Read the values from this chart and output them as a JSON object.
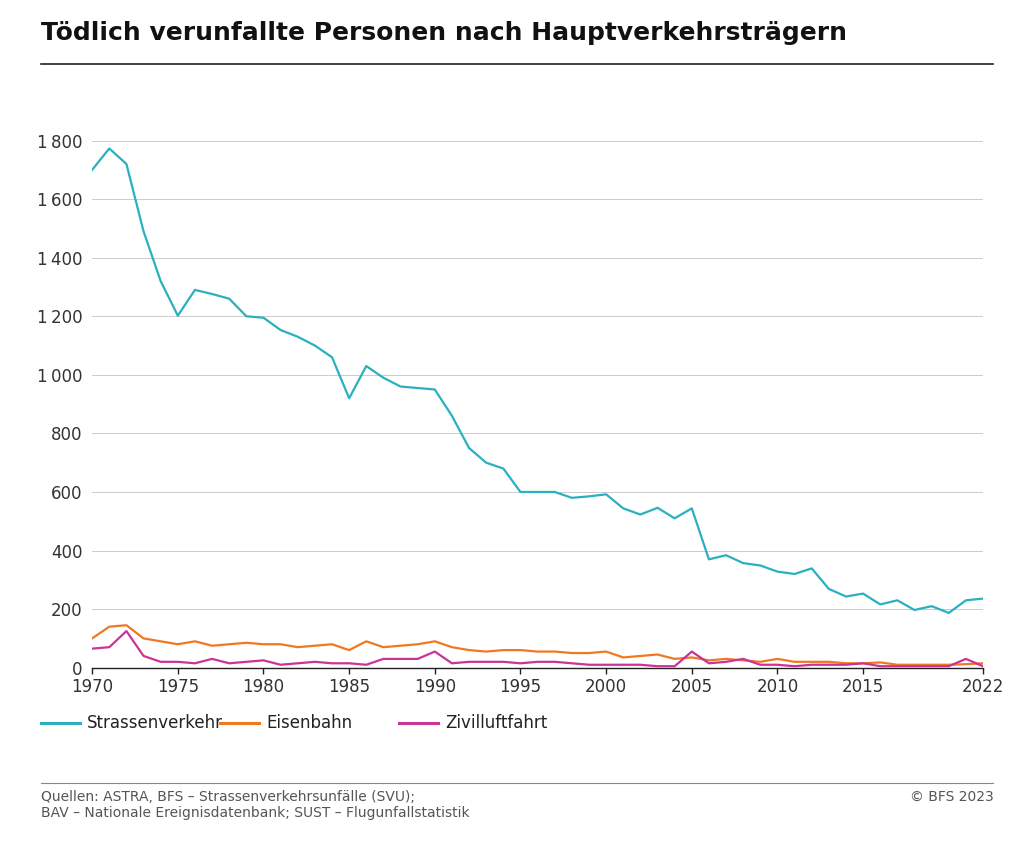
{
  "title": "Tödlich verunfallte Personen nach Hauptverkehrsträgern",
  "source_text": "Quellen: ASTRA, BFS – Strassenverkehrsunfälle (SVU);\nBAV – Nationale Ereignisdatenbank; SUST – Flugunfallstatistik",
  "copyright_text": "© BFS 2023",
  "legend": [
    "Strassenverkehr",
    "Eisenbahn",
    "Zivilluftfahrt"
  ],
  "colors": [
    "#2ab0c0",
    "#f07820",
    "#cc3399"
  ],
  "years": [
    1970,
    1971,
    1972,
    1973,
    1974,
    1975,
    1976,
    1977,
    1978,
    1979,
    1980,
    1981,
    1982,
    1983,
    1984,
    1985,
    1986,
    1987,
    1988,
    1989,
    1990,
    1991,
    1992,
    1993,
    1994,
    1995,
    1996,
    1997,
    1998,
    1999,
    2000,
    2001,
    2002,
    2003,
    2004,
    2005,
    2006,
    2007,
    2008,
    2009,
    2010,
    2011,
    2012,
    2013,
    2014,
    2015,
    2016,
    2017,
    2018,
    2019,
    2020,
    2021,
    2022
  ],
  "strassenverkehr": [
    1700,
    1773,
    1720,
    1490,
    1320,
    1202,
    1290,
    1276,
    1260,
    1200,
    1195,
    1153,
    1130,
    1100,
    1060,
    920,
    1030,
    990,
    960,
    955,
    950,
    860,
    750,
    700,
    680,
    600,
    600,
    600,
    580,
    585,
    592,
    544,
    523,
    546,
    510,
    544,
    370,
    384,
    357,
    349,
    328,
    320,
    339,
    269,
    243,
    253,
    216,
    230,
    197,
    210,
    187,
    230,
    236
  ],
  "eisenbahn": [
    100,
    140,
    145,
    100,
    90,
    80,
    90,
    75,
    80,
    85,
    80,
    80,
    70,
    75,
    80,
    60,
    90,
    70,
    75,
    80,
    90,
    70,
    60,
    55,
    60,
    60,
    55,
    55,
    50,
    50,
    55,
    35,
    40,
    45,
    30,
    35,
    25,
    30,
    25,
    20,
    30,
    20,
    20,
    20,
    15,
    15,
    18,
    10,
    10,
    10,
    10,
    12,
    15
  ],
  "zivilluftfahrt": [
    65,
    70,
    125,
    40,
    20,
    20,
    15,
    30,
    15,
    20,
    25,
    10,
    15,
    20,
    15,
    15,
    10,
    30,
    30,
    30,
    55,
    15,
    20,
    20,
    20,
    15,
    20,
    20,
    15,
    10,
    10,
    10,
    10,
    5,
    5,
    55,
    15,
    20,
    30,
    10,
    10,
    5,
    10,
    10,
    10,
    15,
    5,
    5,
    5,
    5,
    5,
    30,
    5
  ],
  "ylim": [
    0,
    1900
  ],
  "yticks": [
    0,
    200,
    400,
    600,
    800,
    1000,
    1200,
    1400,
    1600,
    1800
  ],
  "xlim": [
    1970,
    2022
  ],
  "xticks": [
    1970,
    1975,
    1980,
    1985,
    1990,
    1995,
    2000,
    2005,
    2010,
    2015,
    2022
  ],
  "bg_color": "#ffffff",
  "grid_color": "#cccccc",
  "title_fontsize": 18,
  "axis_fontsize": 12,
  "legend_fontsize": 12,
  "source_fontsize": 10,
  "line_width": 1.6
}
